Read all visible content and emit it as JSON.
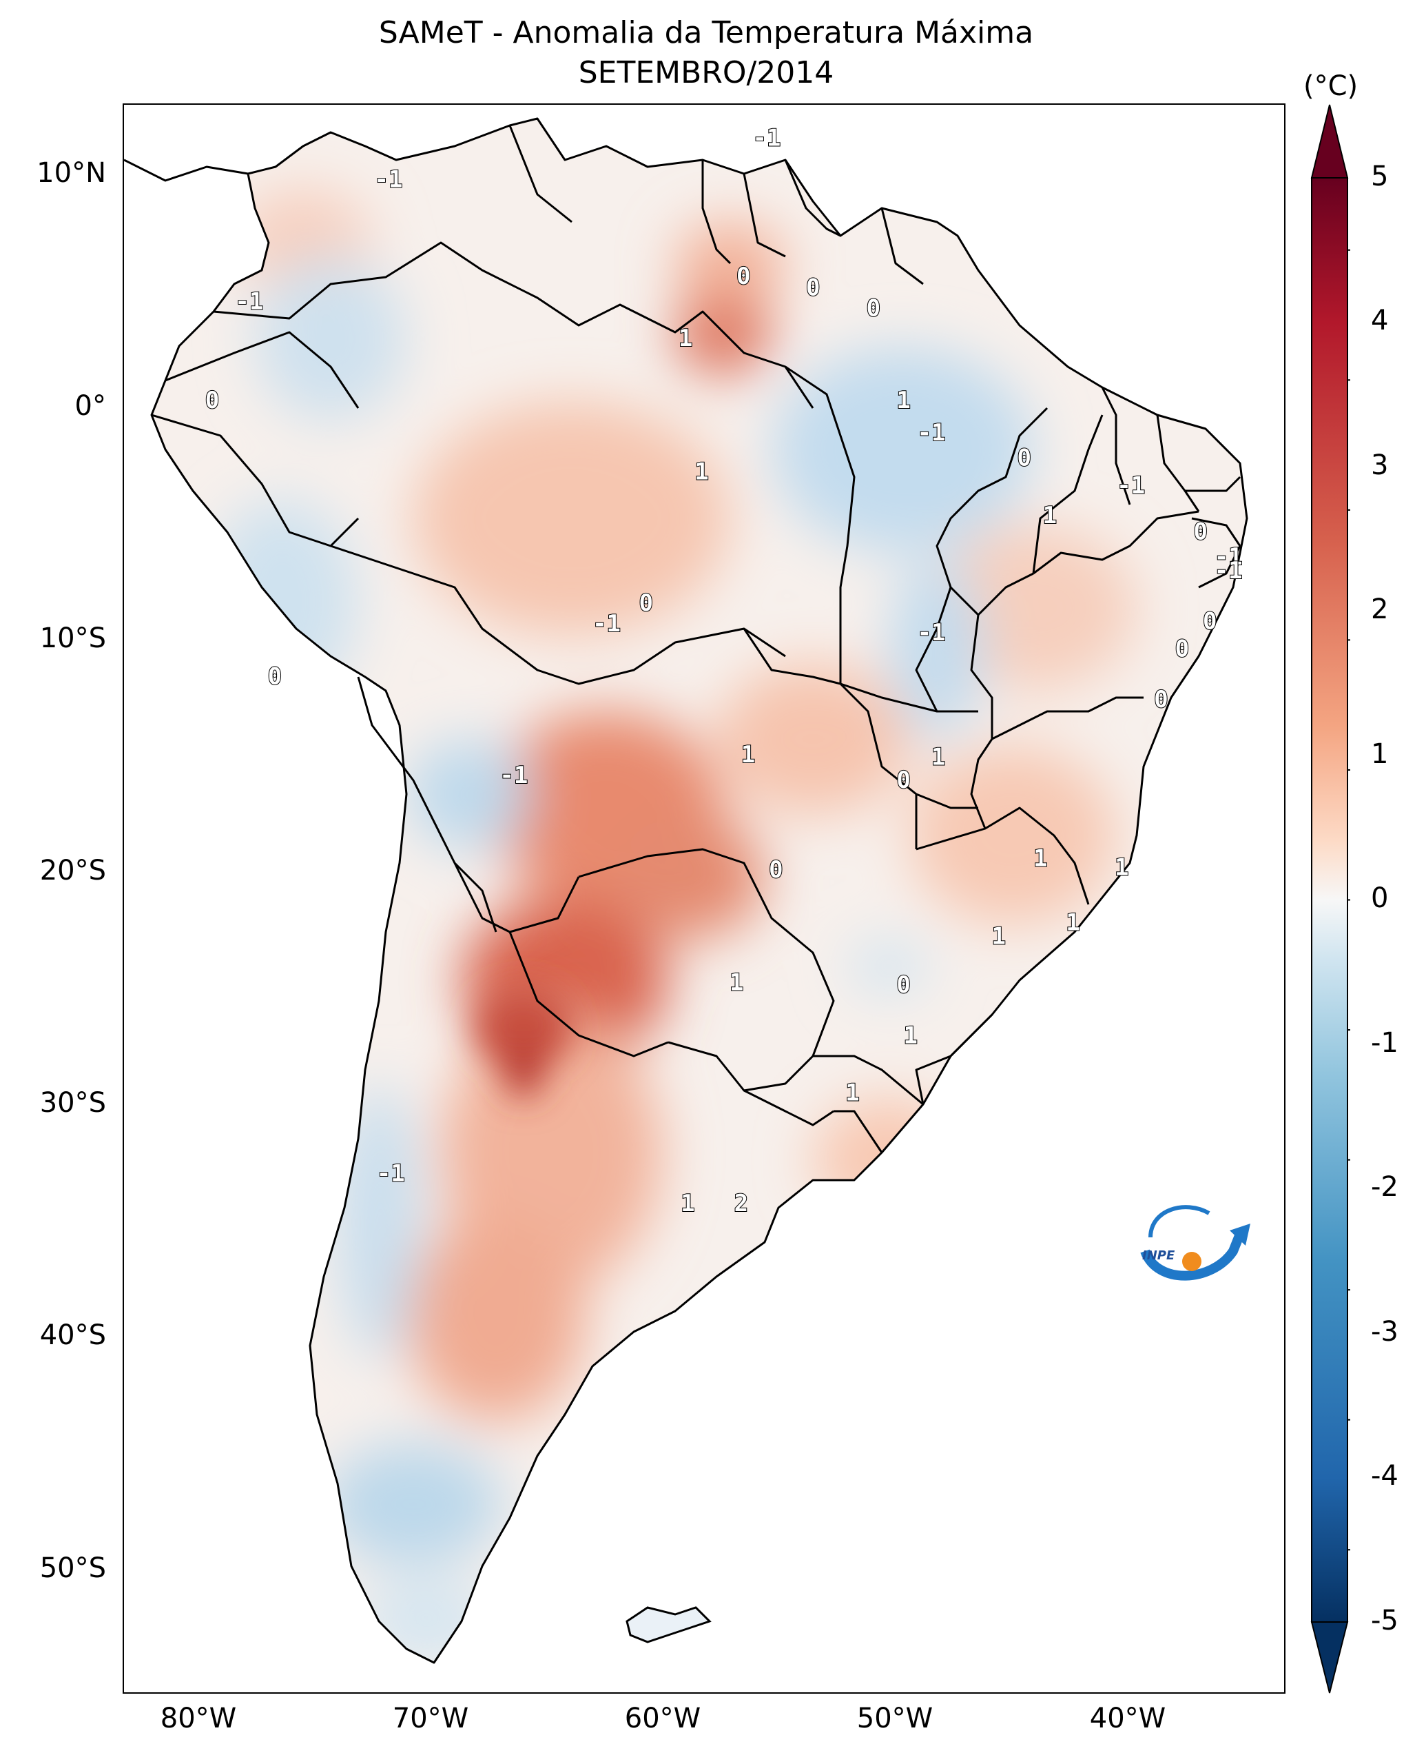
{
  "title": {
    "line1": "SAMeT - Anomalia da Temperatura Máxima",
    "line2": "SETEMBRO/2014"
  },
  "axes": {
    "lat_labels": [
      "10°N",
      "0°",
      "10°S",
      "20°S",
      "30°S",
      "40°S",
      "50°S"
    ],
    "lon_labels": [
      "80°W",
      "70°W",
      "60°W",
      "50°W",
      "40°W"
    ]
  },
  "colorbar": {
    "unit": "(°C)",
    "ticks": [
      "5",
      "4",
      "3",
      "2",
      "1",
      "0",
      "-1",
      "-2",
      "-3",
      "-4",
      "-5"
    ],
    "colors": [
      "#67001f",
      "#b2182b",
      "#d6604d",
      "#f4a582",
      "#fddbc7",
      "#f7f7f7",
      "#d1e5f0",
      "#92c5de",
      "#4393c3",
      "#2166ac",
      "#053061"
    ]
  },
  "logo": {
    "text": "INPE"
  },
  "chart_data": {
    "type": "heatmap",
    "title": "SAMeT - Anomalia da Temperatura Máxima",
    "subtitle": "SETEMBRO/2014",
    "unit": "°C",
    "x_range": [
      -83,
      -33
    ],
    "y_range": [
      -56,
      13
    ],
    "value_range": [
      -5,
      5
    ],
    "contour_labels": [
      {
        "lon": -55.3,
        "lat": 11.5,
        "text": "-1"
      },
      {
        "lon": -71.6,
        "lat": 9.7,
        "text": "-1"
      },
      {
        "lon": -56.3,
        "lat": 5.5,
        "text": "0"
      },
      {
        "lon": -53.3,
        "lat": 5.0,
        "text": "0"
      },
      {
        "lon": -50.7,
        "lat": 4.1,
        "text": "0"
      },
      {
        "lon": -77.6,
        "lat": 4.4,
        "text": "-1"
      },
      {
        "lon": -58.8,
        "lat": 2.8,
        "text": "1"
      },
      {
        "lon": -49.4,
        "lat": 0.1,
        "text": "1"
      },
      {
        "lon": -79.2,
        "lat": 0.1,
        "text": "0"
      },
      {
        "lon": -48.2,
        "lat": -1.3,
        "text": "-1"
      },
      {
        "lon": -44.2,
        "lat": -2.4,
        "text": "0"
      },
      {
        "lon": -58.1,
        "lat": -3.0,
        "text": "1"
      },
      {
        "lon": -39.6,
        "lat": -3.6,
        "text": "-1"
      },
      {
        "lon": -43.1,
        "lat": -4.9,
        "text": "1"
      },
      {
        "lon": -36.6,
        "lat": -5.6,
        "text": "0"
      },
      {
        "lon": -35.4,
        "lat": -6.7,
        "text": "-1"
      },
      {
        "lon": -35.4,
        "lat": -7.3,
        "text": "-1"
      },
      {
        "lon": -36.2,
        "lat": -9.5,
        "text": "0"
      },
      {
        "lon": -37.4,
        "lat": -10.7,
        "text": "0"
      },
      {
        "lon": -60.5,
        "lat": -8.7,
        "text": "0"
      },
      {
        "lon": -62.2,
        "lat": -9.6,
        "text": "-1"
      },
      {
        "lon": -48.2,
        "lat": -10.0,
        "text": "-1"
      },
      {
        "lon": -76.5,
        "lat": -11.9,
        "text": "0"
      },
      {
        "lon": -38.3,
        "lat": -12.9,
        "text": "0"
      },
      {
        "lon": -56.1,
        "lat": -15.3,
        "text": "1"
      },
      {
        "lon": -47.9,
        "lat": -15.4,
        "text": "1"
      },
      {
        "lon": -49.4,
        "lat": -16.4,
        "text": "0"
      },
      {
        "lon": -66.2,
        "lat": -16.2,
        "text": "-1"
      },
      {
        "lon": -43.5,
        "lat": -19.8,
        "text": "1"
      },
      {
        "lon": -54.9,
        "lat": -20.3,
        "text": "0"
      },
      {
        "lon": -40.0,
        "lat": -20.2,
        "text": "1"
      },
      {
        "lon": -42.1,
        "lat": -22.6,
        "text": "1"
      },
      {
        "lon": -45.3,
        "lat": -23.2,
        "text": "1"
      },
      {
        "lon": -56.6,
        "lat": -25.2,
        "text": "1"
      },
      {
        "lon": -49.4,
        "lat": -25.3,
        "text": "0"
      },
      {
        "lon": -49.1,
        "lat": -27.5,
        "text": "1"
      },
      {
        "lon": -51.6,
        "lat": -30.0,
        "text": "1"
      },
      {
        "lon": -71.5,
        "lat": -33.5,
        "text": "-1"
      },
      {
        "lon": -58.7,
        "lat": -34.8,
        "text": "1"
      },
      {
        "lon": -56.4,
        "lat": -34.8,
        "text": "2"
      }
    ]
  }
}
